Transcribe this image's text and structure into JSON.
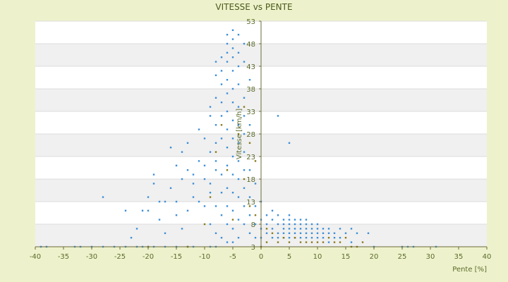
{
  "chart_data": {
    "type": "scatter",
    "title": "VITESSE vs PENTE",
    "xlabel": "Pente [%]",
    "ylabel": "Vitesse [km/h]",
    "xlim": [
      -40,
      40
    ],
    "ylim": [
      3,
      53
    ],
    "xticks": [
      -40,
      -35,
      -30,
      -25,
      -20,
      -15,
      -10,
      -5,
      0,
      5,
      10,
      15,
      20,
      25,
      30,
      35,
      40
    ],
    "yticks": [
      3,
      8,
      13,
      18,
      23,
      28,
      33,
      38,
      43,
      48,
      53
    ],
    "grid": true,
    "legend": "none",
    "colors": {
      "background": "#eef2cc",
      "plot_band_light": "#ffffff",
      "plot_band_dark": "#f0f0f0",
      "axis": "#6b6b3a",
      "series_main": "#3c8fd8",
      "series_secondary": "#8a7a1a"
    },
    "series": [
      {
        "color": "#3c8fd8",
        "points": [
          [
            -39,
            3
          ],
          [
            -38,
            3
          ],
          [
            -33,
            3
          ],
          [
            -32,
            3
          ],
          [
            -30,
            3
          ],
          [
            -28,
            3
          ],
          [
            -26,
            3
          ],
          [
            -24,
            3
          ],
          [
            -22,
            3
          ],
          [
            -21,
            3
          ],
          [
            -20,
            3
          ],
          [
            -19,
            3
          ],
          [
            -17,
            3
          ],
          [
            -15,
            3
          ],
          [
            -13,
            3
          ],
          [
            -12,
            3
          ],
          [
            -9,
            3
          ],
          [
            -8,
            3
          ],
          [
            -28,
            14
          ],
          [
            -24,
            11
          ],
          [
            -23,
            5
          ],
          [
            -22,
            7
          ],
          [
            -21,
            11
          ],
          [
            -20,
            11
          ],
          [
            -20,
            14
          ],
          [
            -19,
            17
          ],
          [
            -19,
            19
          ],
          [
            -18,
            9
          ],
          [
            -18,
            13
          ],
          [
            -17,
            6
          ],
          [
            -17,
            13
          ],
          [
            -16,
            16
          ],
          [
            -16,
            25
          ],
          [
            -15,
            21
          ],
          [
            -15,
            10
          ],
          [
            -15,
            13
          ],
          [
            -14,
            18
          ],
          [
            -14,
            7
          ],
          [
            -14,
            24
          ],
          [
            -13,
            20
          ],
          [
            -13,
            26
          ],
          [
            -13,
            11
          ],
          [
            -12,
            17
          ],
          [
            -12,
            14
          ],
          [
            -12,
            19
          ],
          [
            -11,
            29
          ],
          [
            -11,
            22
          ],
          [
            -11,
            13
          ],
          [
            -10,
            12
          ],
          [
            -10,
            18
          ],
          [
            -10,
            27
          ],
          [
            -10,
            21
          ],
          [
            -9,
            34
          ],
          [
            -9,
            32
          ],
          [
            -9,
            15
          ],
          [
            -9,
            24
          ],
          [
            -9,
            17
          ],
          [
            -9,
            8
          ],
          [
            -8,
            22
          ],
          [
            -8,
            30
          ],
          [
            -8,
            36
          ],
          [
            -8,
            41
          ],
          [
            -8,
            44
          ],
          [
            -8,
            26
          ],
          [
            -8,
            12
          ],
          [
            -8,
            20
          ],
          [
            -8,
            6
          ],
          [
            -7,
            45
          ],
          [
            -7,
            39
          ],
          [
            -7,
            32
          ],
          [
            -7,
            27
          ],
          [
            -7,
            19
          ],
          [
            -7,
            15
          ],
          [
            -7,
            10
          ],
          [
            -7,
            5
          ],
          [
            -7,
            42
          ],
          [
            -7,
            35
          ],
          [
            -6,
            48
          ],
          [
            -6,
            46
          ],
          [
            -6,
            44
          ],
          [
            -6,
            40
          ],
          [
            -6,
            37
          ],
          [
            -6,
            33
          ],
          [
            -6,
            29
          ],
          [
            -6,
            25
          ],
          [
            -6,
            21
          ],
          [
            -6,
            16
          ],
          [
            -6,
            12
          ],
          [
            -6,
            8
          ],
          [
            -6,
            4
          ],
          [
            -6,
            50
          ],
          [
            -5,
            51
          ],
          [
            -5,
            49
          ],
          [
            -5,
            47
          ],
          [
            -5,
            45
          ],
          [
            -5,
            42
          ],
          [
            -5,
            38
          ],
          [
            -5,
            35
          ],
          [
            -5,
            31
          ],
          [
            -5,
            27
          ],
          [
            -5,
            23
          ],
          [
            -5,
            19
          ],
          [
            -5,
            15
          ],
          [
            -5,
            11
          ],
          [
            -5,
            7
          ],
          [
            -5,
            4
          ],
          [
            -4,
            50
          ],
          [
            -4,
            46
          ],
          [
            -4,
            43
          ],
          [
            -4,
            39
          ],
          [
            -4,
            34
          ],
          [
            -4,
            30
          ],
          [
            -4,
            26
          ],
          [
            -4,
            22
          ],
          [
            -4,
            18
          ],
          [
            -4,
            14
          ],
          [
            -4,
            9
          ],
          [
            -4,
            5
          ],
          [
            -3,
            48
          ],
          [
            -3,
            44
          ],
          [
            -3,
            36
          ],
          [
            -3,
            32
          ],
          [
            -3,
            28
          ],
          [
            -3,
            24
          ],
          [
            -3,
            20
          ],
          [
            -3,
            16
          ],
          [
            -3,
            12
          ],
          [
            -3,
            8
          ],
          [
            -2,
            40
          ],
          [
            -2,
            30
          ],
          [
            -2,
            20
          ],
          [
            -2,
            14
          ],
          [
            -2,
            10
          ],
          [
            -2,
            6
          ],
          [
            -1,
            17
          ],
          [
            -1,
            12
          ],
          [
            -1,
            8
          ],
          [
            -1,
            5
          ],
          [
            0,
            13
          ],
          [
            0,
            9
          ],
          [
            0,
            7
          ],
          [
            0,
            5
          ],
          [
            1,
            6
          ],
          [
            1,
            8
          ],
          [
            1,
            10
          ],
          [
            2,
            5
          ],
          [
            2,
            7
          ],
          [
            2,
            9
          ],
          [
            2,
            11
          ],
          [
            3,
            6
          ],
          [
            3,
            8
          ],
          [
            3,
            10
          ],
          [
            3,
            32
          ],
          [
            3,
            5
          ],
          [
            4,
            6
          ],
          [
            4,
            7
          ],
          [
            4,
            8
          ],
          [
            4,
            9
          ],
          [
            4,
            5
          ],
          [
            5,
            6
          ],
          [
            5,
            7
          ],
          [
            5,
            8
          ],
          [
            5,
            9
          ],
          [
            5,
            10
          ],
          [
            5,
            26
          ],
          [
            5,
            5
          ],
          [
            6,
            6
          ],
          [
            6,
            7
          ],
          [
            6,
            8
          ],
          [
            6,
            9
          ],
          [
            6,
            5
          ],
          [
            7,
            6
          ],
          [
            7,
            7
          ],
          [
            7,
            8
          ],
          [
            7,
            9
          ],
          [
            7,
            5
          ],
          [
            8,
            6
          ],
          [
            8,
            7
          ],
          [
            8,
            8
          ],
          [
            8,
            9
          ],
          [
            8,
            5
          ],
          [
            9,
            6
          ],
          [
            9,
            7
          ],
          [
            9,
            8
          ],
          [
            9,
            5
          ],
          [
            10,
            6
          ],
          [
            10,
            7
          ],
          [
            10,
            8
          ],
          [
            10,
            5
          ],
          [
            11,
            6
          ],
          [
            11,
            7
          ],
          [
            11,
            5
          ],
          [
            12,
            6
          ],
          [
            12,
            7
          ],
          [
            12,
            4
          ],
          [
            13,
            6
          ],
          [
            13,
            5
          ],
          [
            14,
            7
          ],
          [
            14,
            5
          ],
          [
            15,
            6
          ],
          [
            16,
            7
          ],
          [
            16,
            4
          ],
          [
            17,
            6
          ],
          [
            19,
            6
          ],
          [
            20,
            3
          ],
          [
            25,
            3
          ],
          [
            26,
            3
          ],
          [
            27,
            3
          ],
          [
            31,
            3
          ]
        ]
      },
      {
        "color": "#8a7a1a",
        "points": [
          [
            -20,
            3
          ],
          [
            -13,
            3
          ],
          [
            -10,
            8
          ],
          [
            -9,
            14
          ],
          [
            -8,
            24
          ],
          [
            -7,
            30
          ],
          [
            -6,
            20
          ],
          [
            -5,
            9
          ],
          [
            -4,
            28
          ],
          [
            -3,
            34
          ],
          [
            -3,
            18
          ],
          [
            -2,
            26
          ],
          [
            -2,
            12
          ],
          [
            -1,
            22
          ],
          [
            -1,
            10
          ],
          [
            0,
            3
          ],
          [
            1,
            4
          ],
          [
            1,
            7
          ],
          [
            2,
            6
          ],
          [
            3,
            4
          ],
          [
            4,
            5
          ],
          [
            5,
            4
          ],
          [
            6,
            5
          ],
          [
            7,
            4
          ],
          [
            8,
            4
          ],
          [
            9,
            4
          ],
          [
            10,
            4
          ],
          [
            11,
            4
          ],
          [
            12,
            5
          ],
          [
            13,
            4
          ],
          [
            14,
            4
          ],
          [
            15,
            5
          ],
          [
            16,
            3
          ],
          [
            17,
            3
          ],
          [
            18,
            4
          ]
        ]
      }
    ]
  }
}
